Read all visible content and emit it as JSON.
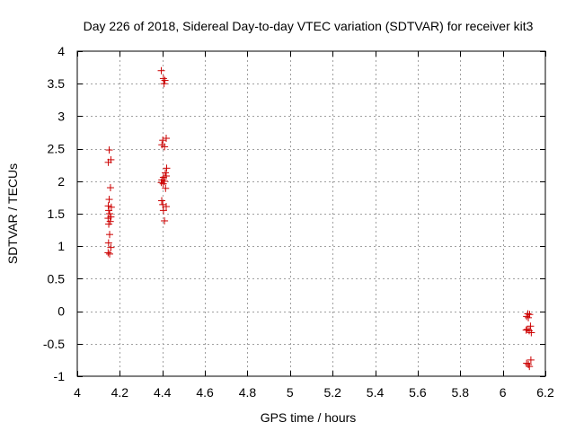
{
  "chart_data": {
    "type": "scatter",
    "title": "Day 226 of 2018, Sidereal Day-to-day VTEC variation (SDTVAR) for receiver kit3",
    "xlabel": "GPS time / hours",
    "ylabel": "SDTVAR / TECUs",
    "xlim": [
      4,
      6.2
    ],
    "ylim": [
      -1,
      4
    ],
    "xticks": [
      4,
      4.2,
      4.4,
      4.6,
      4.8,
      5,
      5.2,
      5.4,
      5.6,
      5.8,
      6,
      6.2
    ],
    "xtick_labels": [
      "4",
      "4.2",
      "4.4",
      "4.6",
      "4.8",
      "5",
      "5.2",
      "5.4",
      "5.6",
      "5.8",
      "6",
      "6.2"
    ],
    "yticks": [
      -1,
      -0.5,
      0,
      0.5,
      1,
      1.5,
      2,
      2.5,
      3,
      3.5,
      4
    ],
    "ytick_labels": [
      "-1",
      "-0.5",
      "0",
      "0.5",
      "1",
      "1.5",
      "2",
      "2.5",
      "3",
      "3.5",
      "4"
    ],
    "grid": true,
    "marker": "+",
    "series_color": "#cc0000",
    "series": [
      {
        "name": "kit3",
        "points": [
          [
            4.15,
            2.48
          ],
          [
            4.146,
            2.29
          ],
          [
            4.158,
            2.33
          ],
          [
            4.156,
            1.9
          ],
          [
            4.15,
            1.72
          ],
          [
            4.146,
            1.62
          ],
          [
            4.16,
            1.6
          ],
          [
            4.148,
            1.55
          ],
          [
            4.152,
            1.5
          ],
          [
            4.158,
            1.45
          ],
          [
            4.145,
            1.43
          ],
          [
            4.155,
            1.38
          ],
          [
            4.148,
            1.34
          ],
          [
            4.152,
            1.18
          ],
          [
            4.147,
            1.05
          ],
          [
            4.158,
            0.98
          ],
          [
            4.145,
            0.9
          ],
          [
            4.152,
            0.88
          ],
          [
            4.395,
            3.7
          ],
          [
            4.405,
            3.58
          ],
          [
            4.412,
            3.55
          ],
          [
            4.408,
            3.5
          ],
          [
            4.402,
            2.63
          ],
          [
            4.418,
            2.66
          ],
          [
            4.398,
            2.56
          ],
          [
            4.41,
            2.53
          ],
          [
            4.42,
            2.2
          ],
          [
            4.414,
            2.13
          ],
          [
            4.418,
            2.08
          ],
          [
            4.405,
            2.06
          ],
          [
            4.398,
            2.02
          ],
          [
            4.41,
            2.0
          ],
          [
            4.395,
            1.98
          ],
          [
            4.404,
            1.96
          ],
          [
            4.415,
            1.89
          ],
          [
            4.397,
            1.7
          ],
          [
            4.402,
            1.64
          ],
          [
            4.418,
            1.61
          ],
          [
            4.405,
            1.55
          ],
          [
            4.41,
            1.39
          ],
          [
            6.118,
            -0.04
          ],
          [
            6.126,
            -0.05
          ],
          [
            6.112,
            -0.08
          ],
          [
            6.12,
            -0.1
          ],
          [
            6.13,
            -0.23
          ],
          [
            6.115,
            -0.28
          ],
          [
            6.124,
            -0.3
          ],
          [
            6.11,
            -0.29
          ],
          [
            6.134,
            -0.33
          ],
          [
            6.132,
            -0.75
          ],
          [
            6.112,
            -0.8
          ],
          [
            6.12,
            -0.82
          ],
          [
            6.125,
            -0.85
          ]
        ]
      }
    ]
  }
}
